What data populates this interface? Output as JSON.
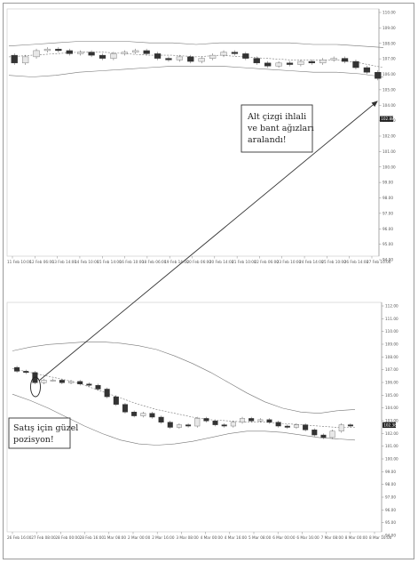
{
  "chart_data": [
    {
      "type": "candlestick",
      "name": "top",
      "ylim": [
        94.0,
        110.0
      ],
      "y_ticks": [
        "110.00",
        "109.00",
        "108.00",
        "107.00",
        "106.00",
        "105.00",
        "104.00",
        "103.00",
        "102.00",
        "101.00",
        "100.00",
        "99.00",
        "98.00",
        "97.00",
        "96.00",
        "95.00",
        "94.00"
      ],
      "current_price": "102.88",
      "x_ticks": [
        "11 Feb 10:00",
        "12 Feb 06:00",
        "13 Feb 14:00",
        "14 Feb 10:00",
        "15 Feb 14:00",
        "16 Feb 10:00",
        "18 Feb 06:00",
        "19 Feb 14:00",
        "20 Feb 06:00",
        "20 Feb 14:00",
        "21 Feb 10:00",
        "22 Feb 06:00",
        "23 Feb 10:00",
        "24 Feb 14:00",
        "25 Feb 10:00",
        "26 Feb 14:00",
        "27 Feb 10:00"
      ],
      "candles": [
        {
          "o": 107.0,
          "c": 106.5
        },
        {
          "o": 106.5,
          "c": 106.9
        },
        {
          "o": 106.9,
          "c": 107.3
        },
        {
          "o": 107.3,
          "c": 107.4
        },
        {
          "o": 107.4,
          "c": 107.3
        },
        {
          "o": 107.3,
          "c": 107.1
        },
        {
          "o": 107.1,
          "c": 107.2
        },
        {
          "o": 107.2,
          "c": 107.0
        },
        {
          "o": 107.0,
          "c": 106.8
        },
        {
          "o": 106.8,
          "c": 107.1
        },
        {
          "o": 107.1,
          "c": 107.2
        },
        {
          "o": 107.2,
          "c": 107.3
        },
        {
          "o": 107.3,
          "c": 107.1
        },
        {
          "o": 107.1,
          "c": 106.8
        },
        {
          "o": 106.8,
          "c": 106.7
        },
        {
          "o": 106.7,
          "c": 106.9
        },
        {
          "o": 106.9,
          "c": 106.6
        },
        {
          "o": 106.6,
          "c": 106.8
        },
        {
          "o": 106.8,
          "c": 107.0
        },
        {
          "o": 107.0,
          "c": 107.2
        },
        {
          "o": 107.2,
          "c": 107.1
        },
        {
          "o": 107.1,
          "c": 106.8
        },
        {
          "o": 106.8,
          "c": 106.5
        },
        {
          "o": 106.5,
          "c": 106.3
        },
        {
          "o": 106.3,
          "c": 106.5
        },
        {
          "o": 106.5,
          "c": 106.4
        },
        {
          "o": 106.4,
          "c": 106.6
        },
        {
          "o": 106.6,
          "c": 106.5
        },
        {
          "o": 106.5,
          "c": 106.7
        },
        {
          "o": 106.7,
          "c": 106.8
        },
        {
          "o": 106.8,
          "c": 106.6
        },
        {
          "o": 106.6,
          "c": 106.2
        },
        {
          "o": 106.2,
          "c": 105.9
        },
        {
          "o": 105.9,
          "c": 105.5
        }
      ],
      "bands": {
        "upper": [
          107.6,
          107.7,
          107.8,
          107.9,
          107.9,
          107.9,
          107.8,
          107.8,
          107.7,
          107.8,
          107.8,
          107.8,
          107.8,
          107.7,
          107.7,
          107.6,
          107.5
        ],
        "middle": [
          106.9,
          107.0,
          107.1,
          107.2,
          107.2,
          107.1,
          107.0,
          107.0,
          106.9,
          107.0,
          106.9,
          106.8,
          106.7,
          106.7,
          106.7,
          106.5,
          106.2
        ],
        "lower": [
          105.7,
          105.6,
          105.7,
          105.9,
          106.0,
          106.1,
          106.2,
          106.3,
          106.3,
          106.3,
          106.2,
          106.1,
          106.0,
          105.9,
          105.9,
          105.8,
          105.6
        ]
      }
    },
    {
      "type": "candlestick",
      "name": "bottom",
      "ylim": [
        94.0,
        112.0
      ],
      "y_ticks": [
        "112.00",
        "111.00",
        "110.00",
        "109.00",
        "108.00",
        "107.00",
        "106.00",
        "105.00",
        "104.00",
        "103.00",
        "102.00",
        "101.00",
        "100.00",
        "99.00",
        "98.00",
        "97.00",
        "96.00",
        "95.00",
        "94.00"
      ],
      "current_price": "102.38",
      "x_ticks": [
        "26 Feb 16:00",
        "27 Feb 08:00",
        "28 Feb 00:00",
        "28 Feb 16:00",
        "1 Mar 08:00",
        "2 Mar 00:00",
        "2 Mar 16:00",
        "3 Mar 08:00",
        "4 Mar 00:00",
        "4 Mar 16:00",
        "5 Mar 08:00",
        "6 Mar 00:00",
        "6 Mar 16:00",
        "7 Mar 08:00",
        "8 Mar 00:00",
        "8 Mar 16:00"
      ],
      "candles": [
        {
          "o": 106.9,
          "c": 106.6
        },
        {
          "o": 106.6,
          "c": 106.5
        },
        {
          "o": 106.5,
          "c": 105.7
        },
        {
          "o": 105.7,
          "c": 105.9
        },
        {
          "o": 105.9,
          "c": 105.9
        },
        {
          "o": 105.9,
          "c": 105.7
        },
        {
          "o": 105.7,
          "c": 105.8
        },
        {
          "o": 105.8,
          "c": 105.6
        },
        {
          "o": 105.6,
          "c": 105.5
        },
        {
          "o": 105.5,
          "c": 105.2
        },
        {
          "o": 105.2,
          "c": 104.6
        },
        {
          "o": 104.6,
          "c": 104.0
        },
        {
          "o": 104.0,
          "c": 103.4
        },
        {
          "o": 103.4,
          "c": 103.1
        },
        {
          "o": 103.1,
          "c": 103.3
        },
        {
          "o": 103.3,
          "c": 103.0
        },
        {
          "o": 103.0,
          "c": 102.6
        },
        {
          "o": 102.6,
          "c": 102.2
        },
        {
          "o": 102.2,
          "c": 102.4
        },
        {
          "o": 102.4,
          "c": 102.3
        },
        {
          "o": 102.3,
          "c": 102.9
        },
        {
          "o": 102.9,
          "c": 102.7
        },
        {
          "o": 102.7,
          "c": 102.4
        },
        {
          "o": 102.4,
          "c": 102.3
        },
        {
          "o": 102.3,
          "c": 102.6
        },
        {
          "o": 102.6,
          "c": 102.9
        },
        {
          "o": 102.9,
          "c": 102.7
        },
        {
          "o": 102.7,
          "c": 102.8
        },
        {
          "o": 102.8,
          "c": 102.6
        },
        {
          "o": 102.6,
          "c": 102.3
        },
        {
          "o": 102.3,
          "c": 102.2
        },
        {
          "o": 102.2,
          "c": 102.4
        },
        {
          "o": 102.4,
          "c": 102.0
        },
        {
          "o": 102.0,
          "c": 101.6
        },
        {
          "o": 101.6,
          "c": 101.4
        },
        {
          "o": 101.4,
          "c": 101.9
        },
        {
          "o": 101.9,
          "c": 102.4
        },
        {
          "o": 102.4,
          "c": 102.3
        }
      ],
      "bands": {
        "upper": [
          108.2,
          108.5,
          108.7,
          108.8,
          108.9,
          108.9,
          108.8,
          108.6,
          108.3,
          107.8,
          107.2,
          106.5,
          105.7,
          104.9,
          104.2,
          103.7,
          103.4,
          103.3,
          103.5,
          103.6
        ],
        "middle": [
          106.8,
          106.5,
          106.2,
          105.9,
          105.5,
          105.0,
          104.5,
          104.0,
          103.6,
          103.3,
          103.0,
          102.8,
          102.7,
          102.6,
          102.6,
          102.5,
          102.4,
          102.3,
          102.2,
          102.2
        ],
        "lower": [
          104.8,
          104.3,
          103.7,
          103.0,
          102.3,
          101.7,
          101.2,
          100.9,
          100.8,
          100.9,
          101.1,
          101.4,
          101.7,
          101.9,
          101.9,
          101.8,
          101.6,
          101.4,
          101.3,
          101.2
        ]
      }
    }
  ],
  "annotations": {
    "top_note": [
      "Alt çizgi ihlali",
      "ve bant ağızları",
      "aralandı!"
    ],
    "bottom_note": [
      "Satış için güzel",
      "pozisyon!"
    ]
  }
}
